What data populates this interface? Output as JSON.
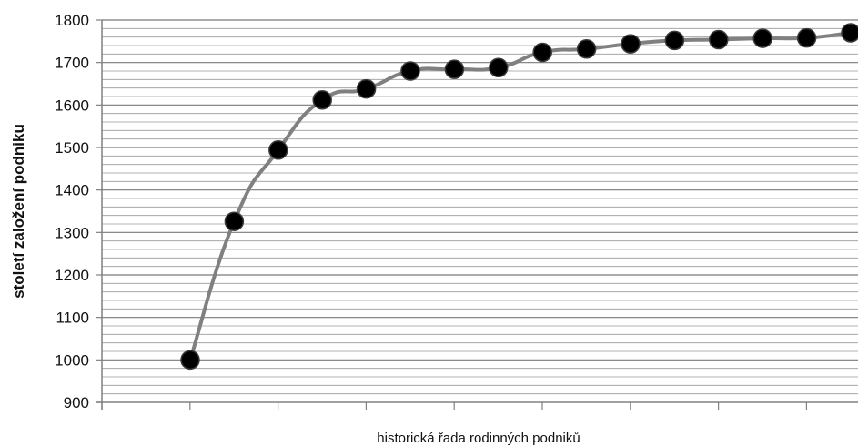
{
  "chart_data": {
    "type": "line",
    "title": "",
    "xlabel": "historická řada rodinných podniků",
    "ylabel": "století založení podniku",
    "ylim": [
      900,
      1800
    ],
    "yticks": [
      900,
      1000,
      1100,
      1200,
      1300,
      1400,
      1500,
      1600,
      1700,
      1800
    ],
    "minor_grid_step": 20,
    "grid": true,
    "legend": "none",
    "series": [
      {
        "values": [
          1000,
          1326,
          1494,
          1612,
          1638,
          1680,
          1684,
          1688,
          1724,
          1732,
          1744,
          1752,
          1754,
          1757,
          1758,
          1770
        ]
      }
    ],
    "colors": {
      "line": "#808080",
      "marker": "#000000",
      "grid": "#9a9a9a",
      "axis": "#808080"
    }
  }
}
